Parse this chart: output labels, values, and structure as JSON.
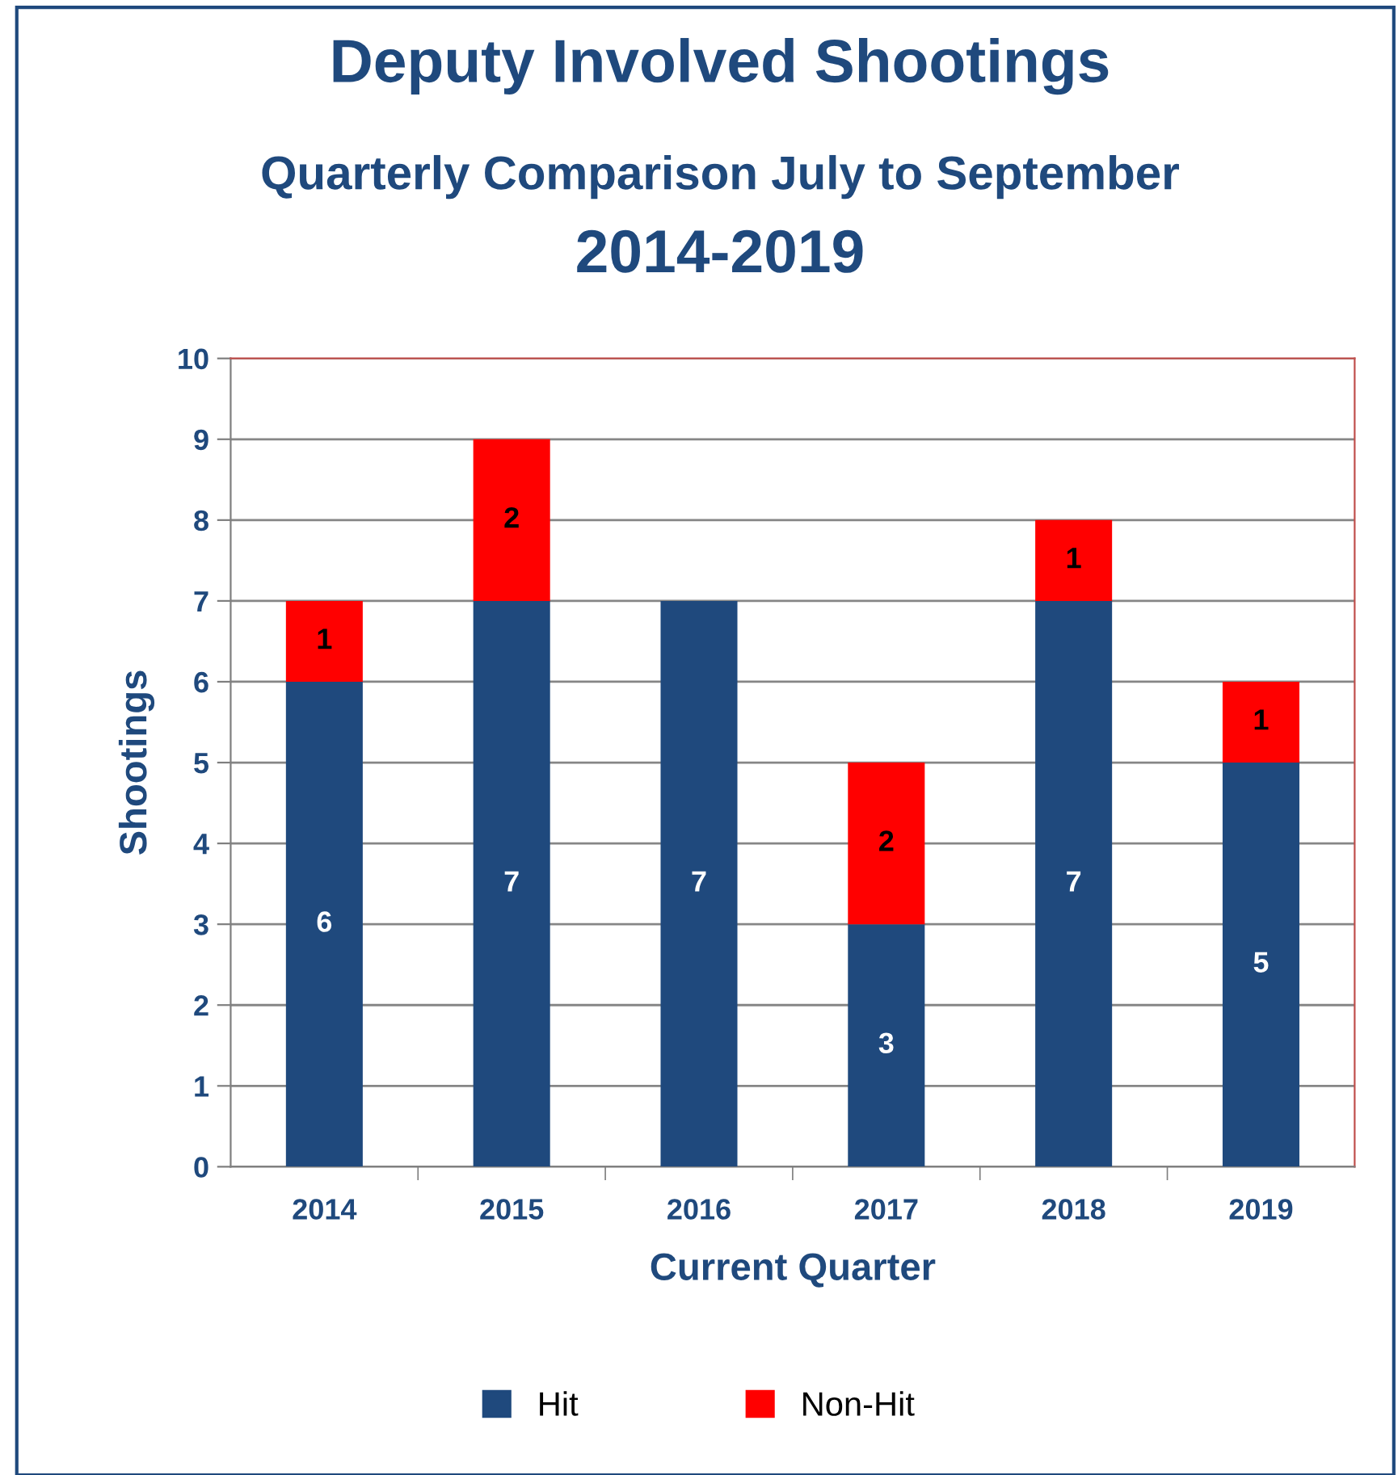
{
  "chart_data": {
    "type": "bar",
    "title": "Deputy Involved Shootings",
    "subtitle": "Quarterly Comparison July to September",
    "annotations": [
      "2014-2019"
    ],
    "xlabel": "Current Quarter",
    "ylabel": "Shootings",
    "categories": [
      "2014",
      "2015",
      "2016",
      "2017",
      "2018",
      "2019"
    ],
    "stacked": true,
    "series": [
      {
        "name": "Hit",
        "color": "#1f497d",
        "values": [
          6,
          7,
          7,
          3,
          7,
          5
        ],
        "value_labels": [
          "6",
          "7",
          "7",
          "3",
          "7",
          "5"
        ]
      },
      {
        "name": "Non-Hit",
        "color": "#ff0000",
        "values": [
          1,
          2,
          null,
          2,
          1,
          1
        ],
        "value_labels": [
          "1",
          "2",
          null,
          "2",
          "1",
          "1"
        ]
      }
    ],
    "ylim": [
      0,
      10
    ],
    "yticks": [
      0,
      1,
      2,
      3,
      4,
      5,
      6,
      7,
      8,
      9,
      10
    ],
    "grid": "y",
    "legend": "bottom"
  }
}
